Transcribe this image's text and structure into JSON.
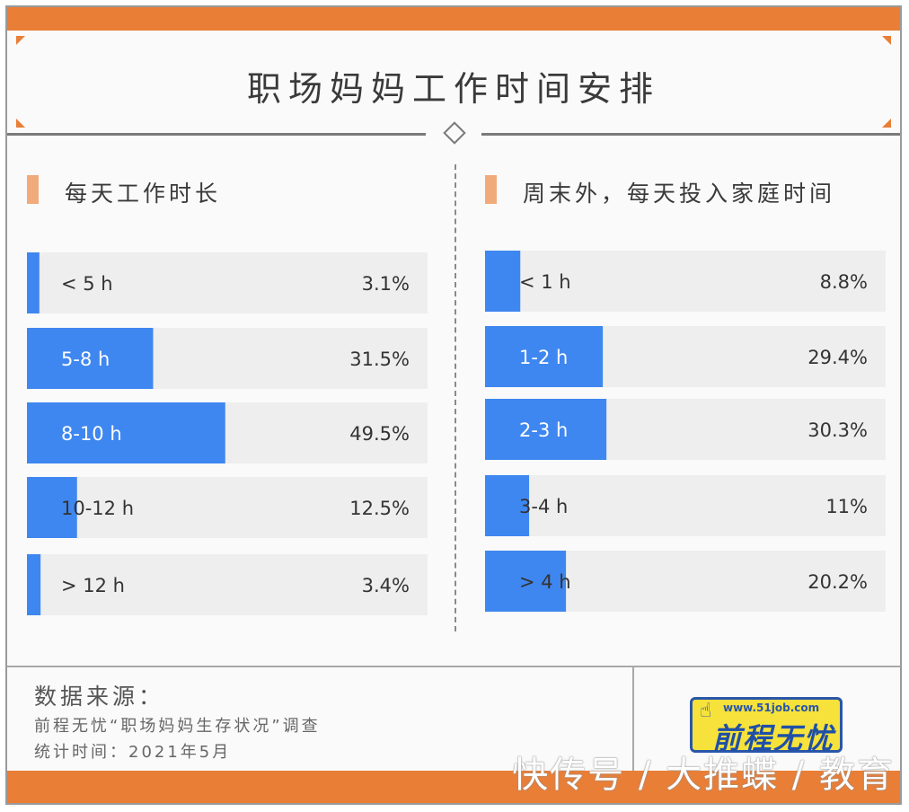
{
  "title": "职场妈妈工作时间安排",
  "colors": {
    "bar": "#3f87f0",
    "track": "#eeeeee",
    "accent": "#e97e36",
    "marker": "#f1ab7b"
  },
  "chart_data": [
    {
      "type": "bar",
      "orientation": "horizontal",
      "title": "每天工作时长",
      "categories": [
        "< 5 h",
        "5-8 h",
        "8-10 h",
        "10-12 h",
        "> 12 h"
      ],
      "values": [
        3.1,
        31.5,
        49.5,
        12.5,
        3.4
      ],
      "value_labels": [
        "3.1%",
        "31.5%",
        "49.5%",
        "12.5%",
        "3.4%"
      ],
      "unit": "%"
    },
    {
      "type": "bar",
      "orientation": "horizontal",
      "title": "周末外，每天投入家庭时间",
      "categories": [
        "< 1 h",
        "1-2 h",
        "2-3 h",
        "3-4 h",
        "> 4 h"
      ],
      "values": [
        8.8,
        29.4,
        30.3,
        11,
        20.2
      ],
      "value_labels": [
        "8.8%",
        "29.4%",
        "30.3%",
        "11%",
        "20.2%"
      ],
      "unit": "%"
    }
  ],
  "footer": {
    "source_title": "数据来源：",
    "source_line": "前程无忧“职场妈妈生存状况”调查",
    "date_line": "统计时间：2021年5月"
  },
  "logo": {
    "url": "www.51job.com",
    "name": "前程无忧",
    "icon": "hand-pointer-icon"
  },
  "watermark": "快传号 / 大推蝶 / 教育"
}
